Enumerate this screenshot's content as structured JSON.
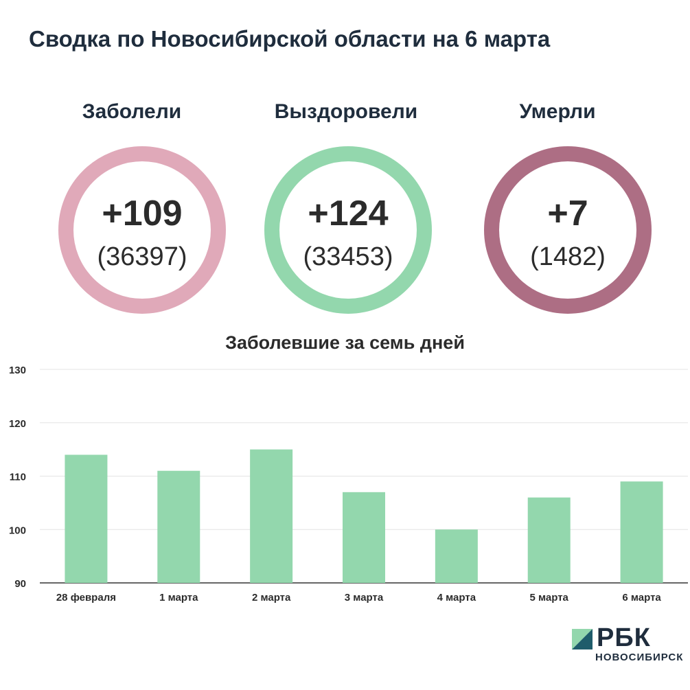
{
  "title": "Сводка по Новосибирской области на 6 марта",
  "stats": [
    {
      "label": "Заболели",
      "delta": "+109",
      "total": "(36397)",
      "color": "#e0a9b9"
    },
    {
      "label": "Выздоровели",
      "delta": "+124",
      "total": "(33453)",
      "color": "#93d7ad"
    },
    {
      "label": "Умерли",
      "delta": "+7",
      "total": "(1482)",
      "color": "#ad6e84"
    }
  ],
  "logo": {
    "name": "РБК",
    "sub": "НОВОСИБИРСК",
    "colors": [
      "#93d7ad",
      "#1f5c6b"
    ]
  },
  "chart_data": {
    "type": "bar",
    "title": "Заболевшие за семь дней",
    "categories": [
      "28 февраля",
      "1 марта",
      "2 марта",
      "3 марта",
      "4 марта",
      "5 марта",
      "6 марта"
    ],
    "values": [
      114,
      111,
      115,
      107,
      100,
      106,
      109
    ],
    "ylim": [
      90,
      130
    ],
    "yticks": [
      90,
      100,
      110,
      120,
      130
    ],
    "xlabel": "",
    "ylabel": "",
    "bar_color": "#93d7ad",
    "grid": true,
    "legend": "none"
  }
}
